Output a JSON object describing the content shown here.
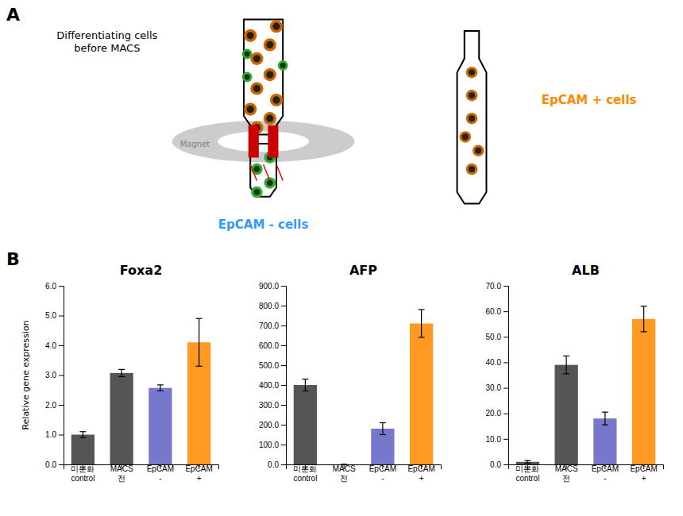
{
  "annotations": [
    {
      "text": "A"
    },
    {
      "text": "Differentiating cells\nbefore MACS"
    },
    {
      "text": "Magnet"
    },
    {
      "text": "EpCAM - cells",
      "color": "#3399ff"
    },
    {
      "text": "EpCAM + cells",
      "color": "#ff8800"
    },
    {
      "text": "B"
    }
  ],
  "chart_data": [
    {
      "type": "bar",
      "title": "Foxa2",
      "ylabel": "Relative gene expression",
      "categories": [
        "미분화\ncontrol",
        "MACS\n전",
        "EpCAM\n-",
        "EpCAM\n+"
      ],
      "values": [
        1.0,
        3.07,
        2.57,
        4.1
      ],
      "errors": [
        0.1,
        0.12,
        0.1,
        0.8
      ],
      "colors": [
        "#555555",
        "#555555",
        "#7777cc",
        "#ff9922"
      ],
      "ylim": [
        0,
        6.0
      ],
      "yticks": [
        {
          "value": 0,
          "label": "0.0"
        },
        {
          "value": 1,
          "label": "1.0"
        },
        {
          "value": 2,
          "label": "2.0"
        },
        {
          "value": 3,
          "label": "3.0"
        },
        {
          "value": 4,
          "label": "4.0"
        },
        {
          "value": 5,
          "label": "5.0"
        },
        {
          "value": 6,
          "label": "6.0"
        }
      ],
      "grid": false
    },
    {
      "type": "bar",
      "title": "AFP",
      "categories": [
        "미분화\ncontrol",
        "MACS\n전",
        "EpCAM\n-",
        "EpCAM\n+"
      ],
      "values": [
        400.0,
        0.0,
        180.0,
        710.0
      ],
      "errors": [
        30.0,
        0.0,
        30.0,
        70.0
      ],
      "colors": [
        "#555555",
        "#555555",
        "#7777cc",
        "#ff9922"
      ],
      "ylim": [
        0,
        900.0
      ],
      "yticks": [
        {
          "value": 0,
          "label": "0.0"
        },
        {
          "value": 100,
          "label": "100.0"
        },
        {
          "value": 200,
          "label": "200.0"
        },
        {
          "value": 300,
          "label": "300.0"
        },
        {
          "value": 400,
          "label": "400.0"
        },
        {
          "value": 500,
          "label": "500.0"
        },
        {
          "value": 600,
          "label": "600.0"
        },
        {
          "value": 700,
          "label": "700.0"
        },
        {
          "value": 800,
          "label": "800.0"
        },
        {
          "value": 900,
          "label": "900.0"
        }
      ],
      "grid": false
    },
    {
      "type": "bar",
      "title": "ALB",
      "categories": [
        "미분화\ncontrol",
        "MACS\n전",
        "EpCAM\n-",
        "EpCAM\n+"
      ],
      "values": [
        1.0,
        39.0,
        18.0,
        57.0
      ],
      "errors": [
        0.5,
        3.5,
        2.5,
        5.0
      ],
      "colors": [
        "#555555",
        "#555555",
        "#7777cc",
        "#ff9922"
      ],
      "ylim": [
        0,
        70.0
      ],
      "yticks": [
        {
          "value": 0,
          "label": "0.0"
        },
        {
          "value": 10,
          "label": "10.0"
        },
        {
          "value": 20,
          "label": "20.0"
        },
        {
          "value": 30,
          "label": "30.0"
        },
        {
          "value": 40,
          "label": "40.0"
        },
        {
          "value": 50,
          "label": "50.0"
        },
        {
          "value": 60,
          "label": "60.0"
        },
        {
          "value": 70,
          "label": "70.0"
        }
      ],
      "grid": false
    }
  ]
}
